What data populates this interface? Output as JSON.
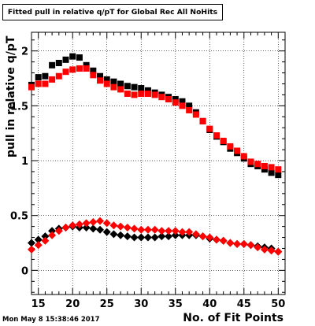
{
  "chart_data": {
    "type": "scatter",
    "title": "Fitted pull in relative q/pT for Global Rec All NoHits",
    "xlabel": "No. of Fit Points",
    "ylabel": "pull in relative q/pT",
    "xlim": [
      14,
      51
    ],
    "ylim": [
      -0.22,
      2.17
    ],
    "x_ticks": [
      15,
      20,
      25,
      30,
      35,
      40,
      45,
      50
    ],
    "y_ticks": [
      0,
      0.5,
      1,
      1.5,
      2
    ],
    "y_tick_labels": [
      "0",
      "0.5",
      "1",
      "1.5",
      "2"
    ],
    "grid": true,
    "x": [
      14,
      15,
      16,
      17,
      18,
      19,
      20,
      21,
      22,
      23,
      24,
      25,
      26,
      27,
      28,
      29,
      30,
      31,
      32,
      33,
      34,
      35,
      36,
      37,
      38,
      39,
      40,
      41,
      42,
      43,
      44,
      45,
      46,
      47,
      48,
      49,
      50
    ],
    "series": [
      {
        "color": "#000000",
        "marker": "square",
        "values": [
          1.69,
          1.76,
          1.77,
          1.87,
          1.89,
          1.92,
          1.95,
          1.94,
          1.87,
          1.82,
          1.77,
          1.74,
          1.72,
          1.7,
          1.68,
          1.67,
          1.66,
          1.64,
          1.62,
          1.6,
          1.58,
          1.56,
          1.54,
          1.5,
          1.44,
          1.36,
          1.28,
          1.22,
          1.17,
          1.11,
          1.07,
          1.02,
          0.97,
          0.95,
          0.92,
          0.89,
          0.87
        ]
      },
      {
        "color": "#ff0000",
        "marker": "square",
        "values": [
          1.67,
          1.7,
          1.7,
          1.74,
          1.77,
          1.81,
          1.83,
          1.84,
          1.84,
          1.78,
          1.73,
          1.7,
          1.67,
          1.65,
          1.61,
          1.6,
          1.61,
          1.61,
          1.6,
          1.58,
          1.56,
          1.53,
          1.5,
          1.46,
          1.42,
          1.36,
          1.29,
          1.23,
          1.18,
          1.13,
          1.09,
          1.04,
          0.99,
          0.97,
          0.95,
          0.94,
          0.92
        ]
      },
      {
        "color": "#000000",
        "marker": "diamond",
        "values": [
          0.25,
          0.28,
          0.31,
          0.36,
          0.38,
          0.39,
          0.4,
          0.39,
          0.39,
          0.38,
          0.37,
          0.35,
          0.33,
          0.32,
          0.31,
          0.3,
          0.3,
          0.3,
          0.3,
          0.31,
          0.31,
          0.32,
          0.32,
          0.32,
          0.32,
          0.31,
          0.29,
          0.28,
          0.27,
          0.25,
          0.24,
          0.24,
          0.23,
          0.22,
          0.21,
          0.2,
          0.17
        ]
      },
      {
        "color": "#ff0000",
        "marker": "diamond",
        "values": [
          0.19,
          0.23,
          0.27,
          0.32,
          0.36,
          0.39,
          0.41,
          0.42,
          0.43,
          0.44,
          0.45,
          0.43,
          0.41,
          0.4,
          0.39,
          0.38,
          0.37,
          0.37,
          0.37,
          0.36,
          0.36,
          0.36,
          0.35,
          0.35,
          0.33,
          0.31,
          0.3,
          0.28,
          0.27,
          0.25,
          0.24,
          0.24,
          0.23,
          0.21,
          0.19,
          0.18,
          0.17
        ]
      }
    ]
  },
  "footer": {
    "timestamp": "Mon May  8 15:38:46 2017"
  }
}
